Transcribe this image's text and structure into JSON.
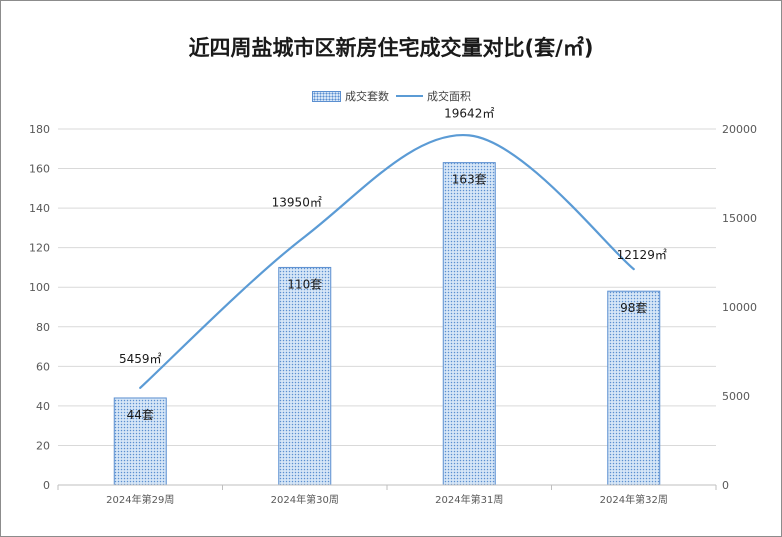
{
  "chart_data": {
    "type": "bar+line",
    "title": "近四周盐城市区新房住宅成交量对比(套/㎡)",
    "categories": [
      "2024年第29周",
      "2024年第30周",
      "2024年第31周",
      "2024年第32周"
    ],
    "bar_series": {
      "name": "成交套数",
      "values": [
        44,
        110,
        163,
        98
      ],
      "labels": [
        "44套",
        "110套",
        "163套",
        "98套"
      ],
      "color": "#5b8fd0"
    },
    "line_series": {
      "name": "成交面积",
      "values": [
        5459,
        13950,
        19642,
        12129
      ],
      "labels": [
        "5459㎡",
        "13950㎡",
        "19642㎡",
        "12129㎡"
      ],
      "color": "#5b9bd5"
    },
    "y_left": {
      "ylim": [
        0,
        180
      ],
      "ticks": [
        "0",
        "20",
        "40",
        "60",
        "80",
        "100",
        "120",
        "140",
        "160",
        "180"
      ]
    },
    "y_right": {
      "ylim": [
        0,
        20000
      ],
      "ticks": [
        "0",
        "5000",
        "10000",
        "15000",
        "20000"
      ]
    },
    "grid": true,
    "legend_position": "top"
  }
}
